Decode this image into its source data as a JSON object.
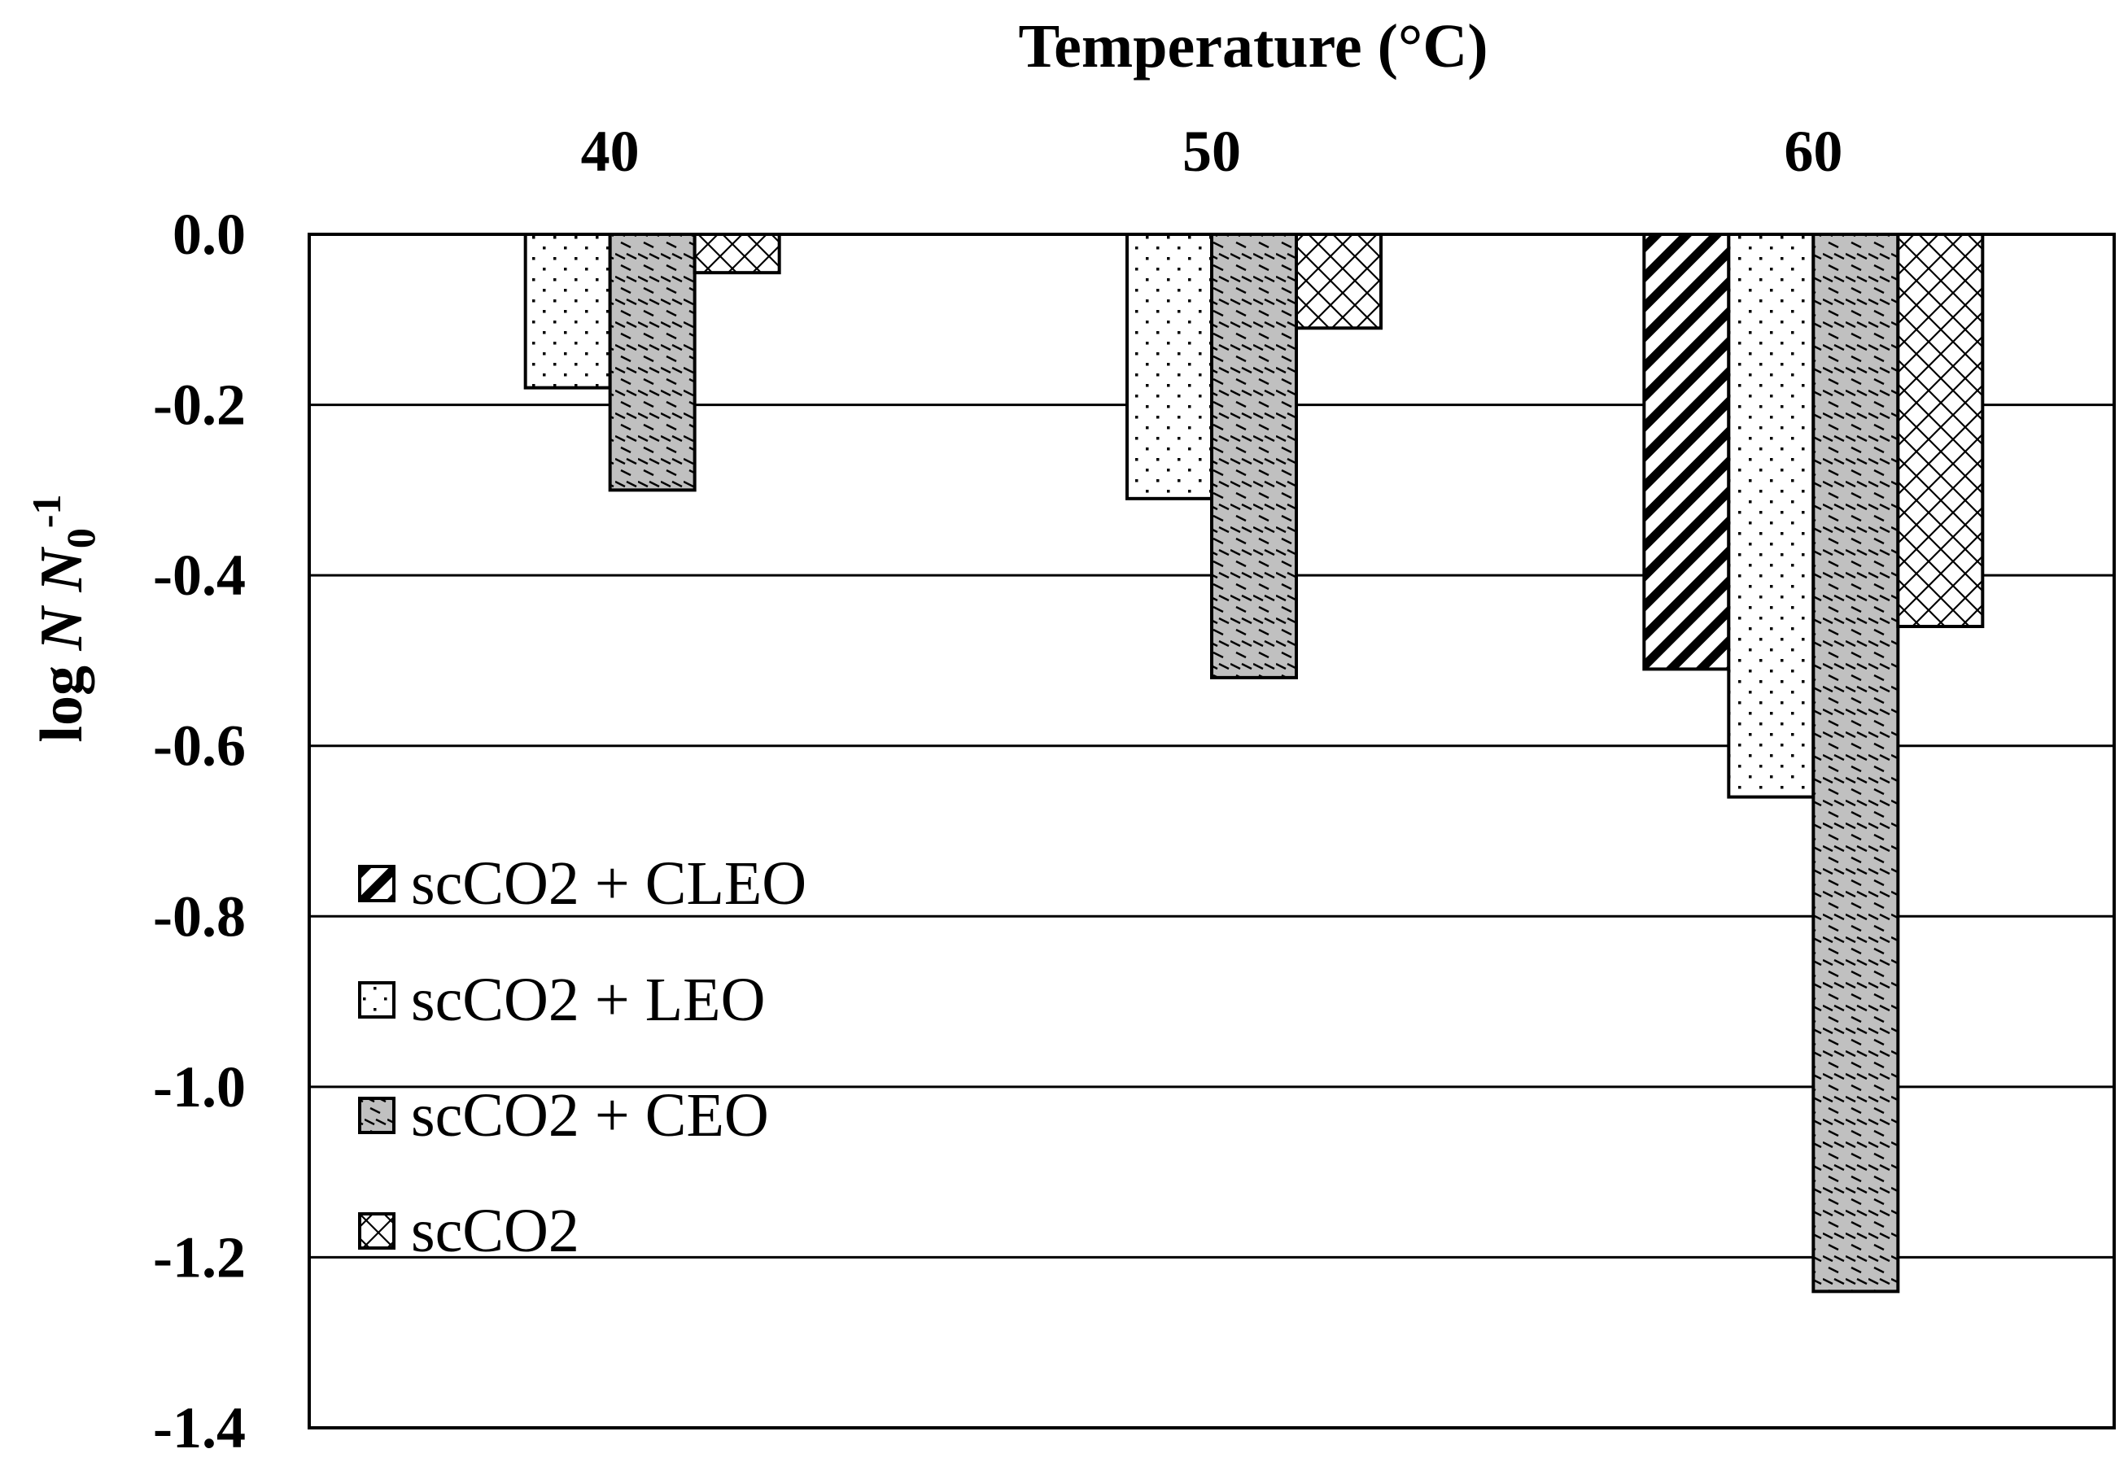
{
  "chart_data": {
    "type": "bar",
    "title": "Temperature (°C)",
    "xlabel": "Temperature (°C)",
    "ylabel": "log N N0-1",
    "ylabel_parts": {
      "prefix": "log ",
      "n": "N",
      "n0": "N",
      "sub": "0",
      "sup": "-1"
    },
    "categories": [
      "40",
      "50",
      "60"
    ],
    "ylim": [
      -1.4,
      0.0
    ],
    "yticks": [
      "0.0",
      "-0.2",
      "-0.4",
      "-0.6",
      "-0.8",
      "-1.0",
      "-1.2",
      "-1.4"
    ],
    "ytick_values": [
      0.0,
      -0.2,
      -0.4,
      -0.6,
      -0.8,
      -1.0,
      -1.2,
      -1.4
    ],
    "grid": true,
    "legend_position": "left-middle",
    "series": [
      {
        "name": "scCO2 + CLEO",
        "pattern": "diagonal",
        "values": [
          null,
          null,
          -0.51
        ]
      },
      {
        "name": "scCO2 + LEO",
        "pattern": "dots",
        "values": [
          -0.18,
          -0.31,
          -0.66
        ]
      },
      {
        "name": "scCO2 + CEO",
        "pattern": "gray-dashes",
        "values": [
          -0.3,
          -0.52,
          -1.24
        ]
      },
      {
        "name": "scCO2",
        "pattern": "crosshatch",
        "values": [
          -0.045,
          -0.11,
          -0.46
        ]
      }
    ],
    "colors": {
      "bar_stroke": "#000000",
      "ceo_fill": "#c0c0c0",
      "grid": "#000000"
    }
  }
}
